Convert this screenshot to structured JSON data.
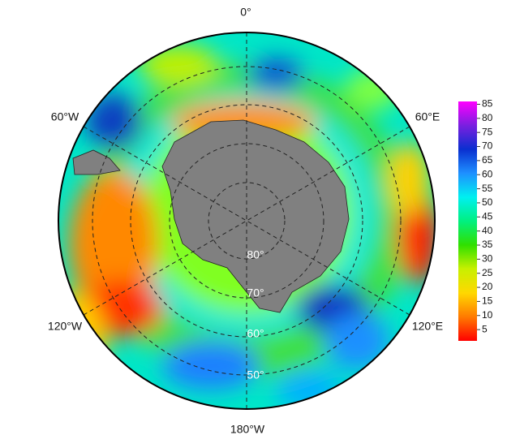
{
  "map": {
    "projection": "south polar stereographic",
    "longitude_labels": [
      "0°",
      "60°E",
      "120°E",
      "180°W",
      "120°W",
      "60°W"
    ],
    "latitude_labels": [
      "80°",
      "70°",
      "60°",
      "50°"
    ],
    "colorbar": {
      "range": [
        1,
        86
      ],
      "ticks": [
        5,
        10,
        15,
        20,
        25,
        30,
        35,
        40,
        45,
        50,
        55,
        60,
        65,
        70,
        75,
        80,
        85
      ],
      "colors": [
        "#ff0000",
        "#ff7a00",
        "#ffd800",
        "#c8f000",
        "#30e000",
        "#00f080",
        "#00f0f0",
        "#1e90ff",
        "#0a2fd0",
        "#7a1fe0",
        "#ff00ff"
      ]
    }
  }
}
